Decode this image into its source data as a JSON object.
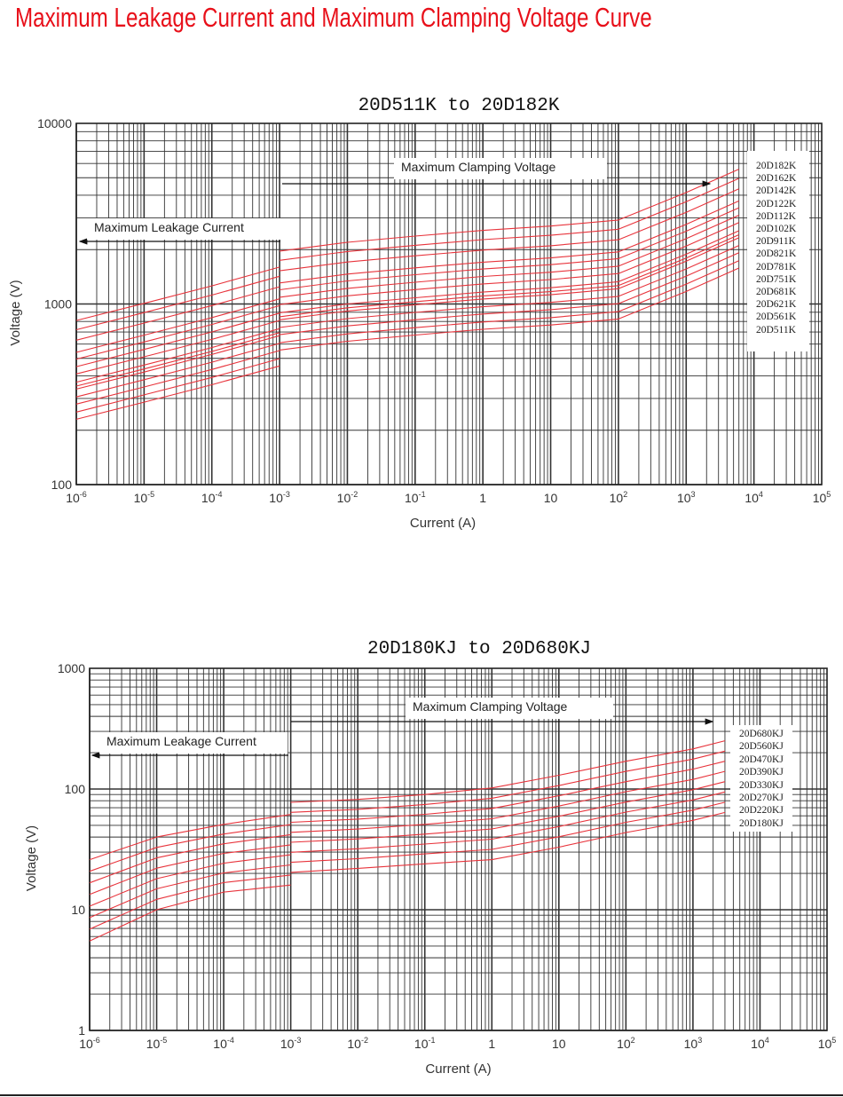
{
  "page_title": "Maximum Leakage Current and Maximum Clamping Voltage Curve",
  "chart_data": [
    {
      "type": "line",
      "title": "20D511K to 20D182K",
      "xlabel": "Current (A)",
      "ylabel": "Voltage (V)",
      "xscale": "log",
      "yscale": "log",
      "xlim": [
        1e-06,
        100000
      ],
      "ylim": [
        100,
        10000
      ],
      "grid": true,
      "legend_position": "right",
      "x_ticks": [
        {
          "base": "10",
          "exp": "-6"
        },
        {
          "base": "10",
          "exp": "-5"
        },
        {
          "base": "10",
          "exp": "-4"
        },
        {
          "base": "10",
          "exp": "-3"
        },
        {
          "base": "10",
          "exp": "-2"
        },
        {
          "base": "10",
          "exp": "-1"
        },
        {
          "base": "1",
          "exp": ""
        },
        {
          "base": "10",
          "exp": ""
        },
        {
          "base": "10",
          "exp": "2"
        },
        {
          "base": "10",
          "exp": "3"
        },
        {
          "base": "10",
          "exp": "4"
        },
        {
          "base": "10",
          "exp": "5"
        }
      ],
      "y_ticks": [
        "100",
        "1000",
        "10000"
      ],
      "annotations": {
        "clamping": "Maximum Clamping Voltage",
        "leakage": "Maximum Leakage Current"
      },
      "leakage_x": [
        1e-06,
        1e-05,
        0.0001,
        0.001
      ],
      "clamping_x": [
        0.001,
        0.01,
        0.1,
        1,
        10,
        100,
        1000,
        6000
      ],
      "series": [
        {
          "name": "20D182K",
          "leakage": [
            810,
            1008,
            1260,
            1602
          ],
          "clamping": [
            1962,
            2196,
            2376,
            2556,
            2700,
            2916,
            4140,
            5580
          ]
        },
        {
          "name": "20D162K",
          "leakage": [
            720,
            896,
            1120,
            1424
          ],
          "clamping": [
            1744,
            1952,
            2112,
            2272,
            2400,
            2592,
            3680,
            4960
          ]
        },
        {
          "name": "20D142K",
          "leakage": [
            630,
            784,
            980,
            1246
          ],
          "clamping": [
            1526,
            1708,
            1848,
            1988,
            2100,
            2268,
            3220,
            4340
          ]
        },
        {
          "name": "20D122K",
          "leakage": [
            540,
            672,
            840,
            1068
          ],
          "clamping": [
            1308,
            1464,
            1584,
            1704,
            1800,
            1944,
            2760,
            3720
          ]
        },
        {
          "name": "20D112K",
          "leakage": [
            495,
            616,
            770,
            979
          ],
          "clamping": [
            1199,
            1342,
            1452,
            1562,
            1650,
            1782,
            2530,
            3410
          ]
        },
        {
          "name": "20D102K",
          "leakage": [
            450,
            560,
            700,
            890
          ],
          "clamping": [
            1090,
            1220,
            1320,
            1420,
            1500,
            1620,
            2300,
            3100
          ]
        },
        {
          "name": "20D911K",
          "leakage": [
            410,
            510,
            637,
            810
          ],
          "clamping": [
            992,
            1110,
            1201,
            1292,
            1365,
            1474,
            2093,
            2821
          ]
        },
        {
          "name": "20D821K",
          "leakage": [
            369,
            459,
            574,
            730
          ],
          "clamping": [
            894,
            1000,
            1082,
            1164,
            1230,
            1328,
            1886,
            2542
          ]
        },
        {
          "name": "20D781K",
          "leakage": [
            351,
            437,
            546,
            694
          ],
          "clamping": [
            850,
            952,
            1030,
            1108,
            1170,
            1264,
            1794,
            2418
          ]
        },
        {
          "name": "20D751K",
          "leakage": [
            338,
            420,
            525,
            668
          ],
          "clamping": [
            818,
            915,
            990,
            1065,
            1125,
            1215,
            1725,
            2325
          ]
        },
        {
          "name": "20D681K",
          "leakage": [
            306,
            381,
            476,
            605
          ],
          "clamping": [
            741,
            830,
            898,
            966,
            1020,
            1102,
            1564,
            2108
          ]
        },
        {
          "name": "20D621K",
          "leakage": [
            279,
            347,
            434,
            552
          ],
          "clamping": [
            676,
            756,
            818,
            880,
            930,
            1004,
            1426,
            1922
          ]
        },
        {
          "name": "20D561K",
          "leakage": [
            252,
            314,
            392,
            498
          ],
          "clamping": [
            610,
            683,
            739,
            795,
            840,
            907,
            1288,
            1736
          ]
        },
        {
          "name": "20D511K",
          "leakage": [
            230,
            286,
            357,
            454
          ],
          "clamping": [
            556,
            622,
            673,
            724,
            765,
            826,
            1173,
            1581
          ]
        }
      ]
    },
    {
      "type": "line",
      "title": "20D180KJ to 20D680KJ",
      "xlabel": "Current (A)",
      "ylabel": "Voltage (V)",
      "xscale": "log",
      "yscale": "log",
      "xlim": [
        1e-06,
        100000
      ],
      "ylim": [
        1,
        1000
      ],
      "grid": true,
      "legend_position": "right",
      "x_ticks": [
        {
          "base": "10",
          "exp": "-6"
        },
        {
          "base": "10",
          "exp": "-5"
        },
        {
          "base": "10",
          "exp": "-4"
        },
        {
          "base": "10",
          "exp": "-3"
        },
        {
          "base": "10",
          "exp": "-2"
        },
        {
          "base": "10",
          "exp": "-1"
        },
        {
          "base": "1",
          "exp": ""
        },
        {
          "base": "10",
          "exp": ""
        },
        {
          "base": "10",
          "exp": "2"
        },
        {
          "base": "10",
          "exp": "3"
        },
        {
          "base": "10",
          "exp": "4"
        },
        {
          "base": "10",
          "exp": "5"
        }
      ],
      "y_ticks": [
        "1",
        "10",
        "100",
        "1000"
      ],
      "annotations": {
        "clamping": "Maximum Clamping Voltage",
        "leakage": "Maximum Leakage Current"
      },
      "leakage_x": [
        1e-06,
        1e-05,
        0.0001,
        0.001
      ],
      "clamping_x": [
        0.001,
        0.01,
        0.1,
        1,
        10,
        100,
        1000,
        3000
      ],
      "series": [
        {
          "name": "20D680KJ",
          "leakage": [
            26,
            40,
            51,
            61.5
          ],
          "clamping": [
            77.6,
            82,
            90,
            102,
            130,
            170,
            215,
            251
          ]
        },
        {
          "name": "20D560KJ",
          "leakage": [
            20.8,
            32.8,
            42.4,
            50.7
          ],
          "clamping": [
            64.1,
            67.9,
            74.5,
            83.9,
            106.9,
            140,
            177,
            206
          ]
        },
        {
          "name": "20D470KJ",
          "leakage": [
            16.7,
            26.9,
            35.2,
            41.9
          ],
          "clamping": [
            53,
            56.3,
            61.7,
            69,
            87.9,
            115,
            146,
            170
          ]
        },
        {
          "name": "20D390KJ",
          "leakage": [
            13.4,
            22.1,
            29.3,
            34.5
          ],
          "clamping": [
            43.8,
            46.6,
            51,
            56.7,
            72.3,
            95,
            120,
            140
          ]
        },
        {
          "name": "20D330KJ",
          "leakage": [
            10.7,
            18.1,
            24.3,
            28.5
          ],
          "clamping": [
            36.2,
            38.6,
            42.3,
            46.7,
            59.5,
            78,
            98.6,
            115
          ]
        },
        {
          "name": "20D270KJ",
          "leakage": [
            8.6,
            14.9,
            20.2,
            23.5
          ],
          "clamping": [
            29.9,
            32,
            35,
            38.4,
            48.9,
            64.4,
            81.2,
            94.5
          ]
        },
        {
          "name": "20D220KJ",
          "leakage": [
            6.9,
            12.2,
            16.8,
            19.4
          ],
          "clamping": [
            24.7,
            26.5,
            29,
            31.6,
            40.2,
            53,
            66.8,
            77.7
          ]
        },
        {
          "name": "20D180KJ",
          "leakage": [
            5.5,
            10,
            14,
            16
          ],
          "clamping": [
            20.4,
            22,
            24,
            26,
            33,
            43.6,
            55,
            64
          ]
        }
      ]
    }
  ],
  "colors": {
    "title": "#e8101a",
    "curve": "#e8343c",
    "grid": "#333333"
  }
}
